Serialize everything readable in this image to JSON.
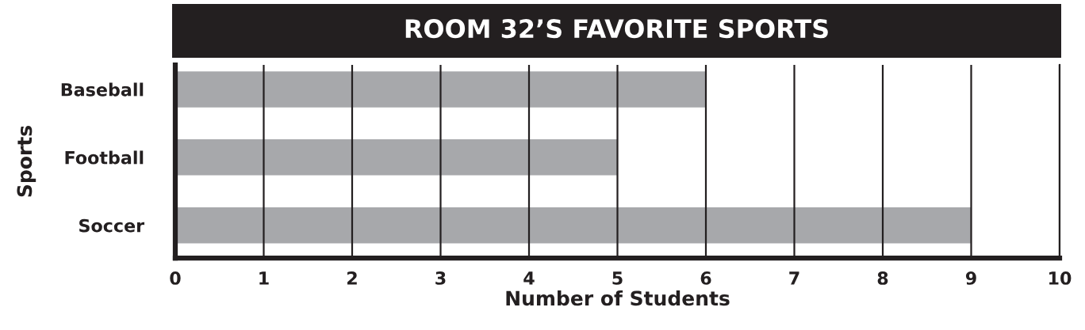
{
  "chart_data": {
    "type": "bar",
    "orientation": "horizontal",
    "title": "ROOM 32’S FAVORITE SPORTS",
    "xlabel": "Number of Students",
    "ylabel": "Sports",
    "categories": [
      "Baseball",
      "Football",
      "Soccer"
    ],
    "values": [
      6,
      5,
      9
    ],
    "color": "#a7a8ab",
    "xlim": [
      0,
      10
    ],
    "xticks": [
      0,
      1,
      2,
      3,
      4,
      5,
      6,
      7,
      8,
      9,
      10
    ],
    "grid": "x"
  }
}
